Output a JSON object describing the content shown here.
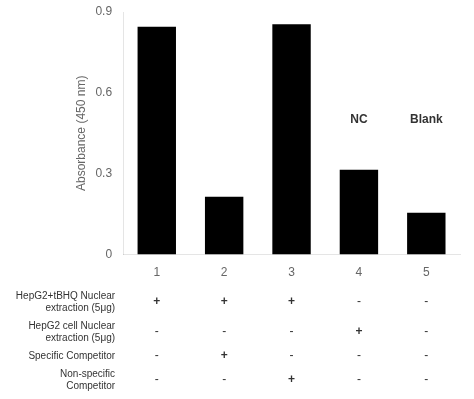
{
  "chart_data": {
    "type": "bar",
    "categories": [
      "1",
      "2",
      "3",
      "4",
      "5"
    ],
    "values": [
      0.845,
      0.215,
      0.855,
      0.315,
      0.155
    ],
    "color": "#000000",
    "ylabel": "Absorbance (450 nm)",
    "ylim": [
      0,
      0.9
    ],
    "yticks": [
      0,
      0.3,
      0.6,
      0.9
    ],
    "grid": false,
    "annotations": [
      {
        "text": "NC",
        "x": "4",
        "y": 0.47
      },
      {
        "text": "Blank",
        "x": "5",
        "y": 0.47
      }
    ],
    "table": {
      "row_labels": [
        "HepG2+tBHQ Nuclear\nextraction (5μg)",
        "HepG2 cell Nuclear\nextraction (5μg)",
        "Specific Competitor",
        "Non-specific\nCompetitor"
      ],
      "cells": [
        [
          "+",
          "+",
          "+",
          "-",
          "-"
        ],
        [
          "-",
          "-",
          "-",
          "+",
          "-"
        ],
        [
          "-",
          "+",
          "-",
          "-",
          "-"
        ],
        [
          "-",
          "-",
          "+",
          "-",
          "-"
        ]
      ]
    }
  }
}
